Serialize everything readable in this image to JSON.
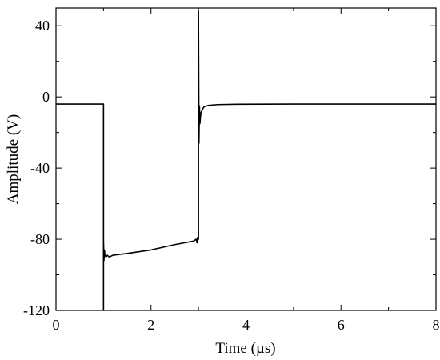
{
  "chart_data": {
    "type": "line",
    "title": "",
    "xlabel": "Time (µs)",
    "ylabel": "Amplitude (V)",
    "xlim": [
      0,
      8
    ],
    "ylim": [
      -120,
      50
    ],
    "grid": false,
    "legend": "none",
    "x_ticks": [
      0,
      2,
      4,
      6,
      8
    ],
    "y_ticks": [
      40,
      0,
      -40,
      -80,
      -120
    ],
    "x_tick_labels": [
      "0",
      "2",
      "4",
      "6",
      "8"
    ],
    "y_tick_labels": [
      "40",
      "0",
      "-40",
      "-80",
      "-120"
    ],
    "series": [
      {
        "color": "#000000",
        "x": [
          0,
          1.0,
          1.0,
          1.0,
          1.01,
          1.02,
          1.03,
          1.05,
          1.08,
          1.12,
          1.2,
          1.5,
          2.0,
          2.5,
          2.9,
          2.95,
          2.97,
          2.98,
          2.99,
          3.0,
          3.0,
          3.01,
          3.02,
          3.03,
          3.05,
          3.08,
          3.12,
          3.2,
          3.4,
          3.8,
          5.0,
          8.0
        ],
        "y": [
          -4,
          -4,
          -120,
          -80,
          -92,
          -86,
          -89,
          -90,
          -89,
          -90,
          -89,
          -88,
          -86,
          -83,
          -81,
          -80,
          -82,
          -79,
          -80,
          -80,
          48,
          -26,
          -5,
          -15,
          -9,
          -7,
          -5.5,
          -4.8,
          -4.3,
          -4.1,
          -4,
          -4
        ]
      }
    ]
  }
}
